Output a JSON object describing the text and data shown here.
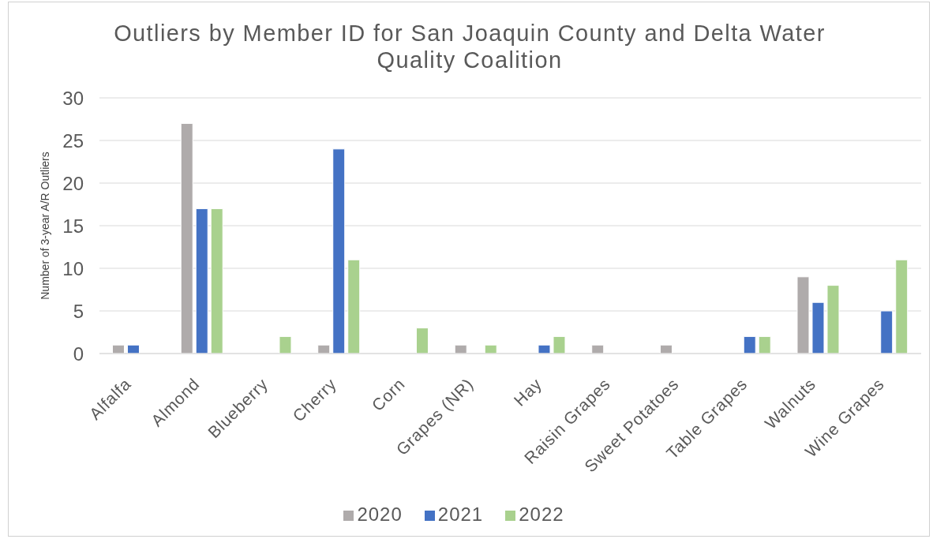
{
  "chart_data": {
    "type": "bar",
    "title": "Outliers by Member ID for San Joaquin County and Delta Water Quality Coalition",
    "ylabel": "Number of 3-year A/R Outliers",
    "categories": [
      "Alfalfa",
      "Almond",
      "Blueberry",
      "Cherry",
      "Corn",
      "Grapes (NR)",
      "Hay",
      "Raisin Grapes",
      "Sweet Potatoes",
      "Table Grapes",
      "Walnuts",
      "Wine Grapes"
    ],
    "series": [
      {
        "name": "2020",
        "color": "#afabab",
        "values": [
          1,
          27,
          null,
          1,
          null,
          1,
          null,
          1,
          1,
          null,
          9,
          null
        ]
      },
      {
        "name": "2021",
        "color": "#4472c4",
        "values": [
          1,
          17,
          null,
          24,
          null,
          null,
          1,
          null,
          null,
          2,
          6,
          5
        ]
      },
      {
        "name": "2022",
        "color": "#a9d18e",
        "values": [
          null,
          17,
          2,
          11,
          3,
          1,
          2,
          null,
          null,
          2,
          8,
          11
        ]
      }
    ],
    "ylim": [
      0,
      30
    ],
    "yticks": [
      0,
      5,
      10,
      15,
      20,
      25,
      30
    ],
    "grid": "y",
    "legend": "bottom"
  }
}
